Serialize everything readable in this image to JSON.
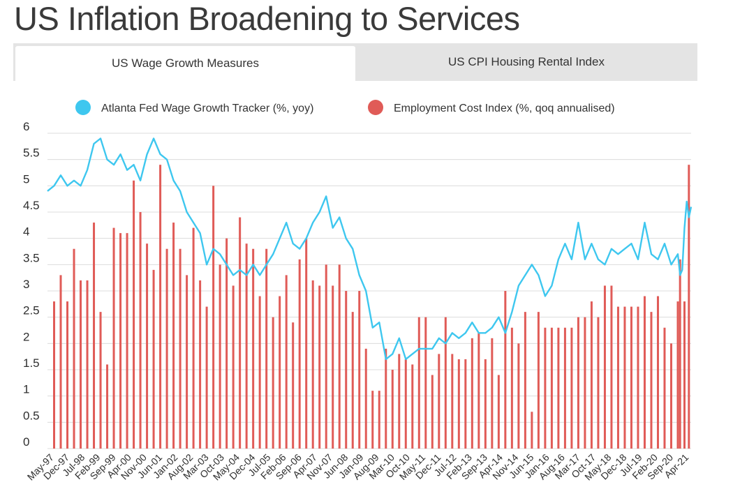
{
  "page": {
    "title": "US Inflation Broadening to Services"
  },
  "tabs": [
    {
      "label": "US Wage Growth Measures",
      "active": true
    },
    {
      "label": "US CPI Housing Rental Index",
      "active": false
    }
  ],
  "colors": {
    "wage_line": "#3ec7ef",
    "eci_bars": "#e05b57",
    "grid": "#dcdcdc"
  },
  "chart_data": {
    "type": "bar+line",
    "title": "",
    "xlabel": "",
    "ylabel": "",
    "ylim": [
      0,
      6
    ],
    "yticks": [
      "0",
      "0.5",
      "1",
      "1.5",
      "2",
      "2.5",
      "3",
      "3.5",
      "4",
      "4.5",
      "5",
      "5.5",
      "6"
    ],
    "x_start": "1997-03",
    "x_end": "2021-06",
    "x_tick_labels": [
      "May-97",
      "Dec-97",
      "Jul-98",
      "Feb-99",
      "Sep-99",
      "Apr-00",
      "Nov-00",
      "Jun-01",
      "Jan-02",
      "Aug-02",
      "Mar-03",
      "Oct-03",
      "May-04",
      "Dec-04",
      "Jul-05",
      "Feb-06",
      "Sep-06",
      "Apr-07",
      "Nov-07",
      "Jun-08",
      "Jan-09",
      "Aug-09",
      "Mar-10",
      "Oct-10",
      "May-11",
      "Dec-11",
      "Jul-12",
      "Feb-13",
      "Sep-13",
      "Apr-14",
      "Nov-14",
      "Jun-15",
      "Jan-16",
      "Aug-16",
      "Mar-17",
      "Oct-17",
      "May-18",
      "Dec-18",
      "Jul-19",
      "Feb-20",
      "Sep-20",
      "Apr-21"
    ],
    "series": [
      {
        "name": "Atlanta Fed Wage Growth Tracker (%, yoy)",
        "kind": "line",
        "points": [
          [
            "1997-03",
            4.9
          ],
          [
            "1997-06",
            5.0
          ],
          [
            "1997-09",
            5.2
          ],
          [
            "1997-12",
            5.0
          ],
          [
            "1998-03",
            5.1
          ],
          [
            "1998-06",
            5.0
          ],
          [
            "1998-09",
            5.3
          ],
          [
            "1998-12",
            5.8
          ],
          [
            "1999-03",
            5.9
          ],
          [
            "1999-06",
            5.5
          ],
          [
            "1999-09",
            5.4
          ],
          [
            "1999-12",
            5.6
          ],
          [
            "2000-03",
            5.3
          ],
          [
            "2000-06",
            5.4
          ],
          [
            "2000-09",
            5.1
          ],
          [
            "2000-12",
            5.6
          ],
          [
            "2001-03",
            5.9
          ],
          [
            "2001-06",
            5.6
          ],
          [
            "2001-09",
            5.5
          ],
          [
            "2001-12",
            5.1
          ],
          [
            "2002-03",
            4.9
          ],
          [
            "2002-06",
            4.5
          ],
          [
            "2002-09",
            4.3
          ],
          [
            "2002-12",
            4.1
          ],
          [
            "2003-03",
            3.5
          ],
          [
            "2003-06",
            3.8
          ],
          [
            "2003-09",
            3.7
          ],
          [
            "2003-12",
            3.5
          ],
          [
            "2004-03",
            3.3
          ],
          [
            "2004-06",
            3.4
          ],
          [
            "2004-09",
            3.3
          ],
          [
            "2004-12",
            3.5
          ],
          [
            "2005-03",
            3.3
          ],
          [
            "2005-06",
            3.5
          ],
          [
            "2005-09",
            3.7
          ],
          [
            "2005-12",
            4.0
          ],
          [
            "2006-03",
            4.3
          ],
          [
            "2006-06",
            3.9
          ],
          [
            "2006-09",
            3.8
          ],
          [
            "2006-12",
            4.0
          ],
          [
            "2007-03",
            4.3
          ],
          [
            "2007-06",
            4.5
          ],
          [
            "2007-09",
            4.8
          ],
          [
            "2007-12",
            4.2
          ],
          [
            "2008-03",
            4.4
          ],
          [
            "2008-06",
            4.0
          ],
          [
            "2008-09",
            3.8
          ],
          [
            "2008-12",
            3.3
          ],
          [
            "2009-03",
            3.0
          ],
          [
            "2009-06",
            2.3
          ],
          [
            "2009-09",
            2.4
          ],
          [
            "2009-12",
            1.7
          ],
          [
            "2010-03",
            1.8
          ],
          [
            "2010-06",
            2.1
          ],
          [
            "2010-09",
            1.7
          ],
          [
            "2010-12",
            1.8
          ],
          [
            "2011-03",
            1.9
          ],
          [
            "2011-06",
            1.9
          ],
          [
            "2011-09",
            1.9
          ],
          [
            "2011-12",
            2.1
          ],
          [
            "2012-03",
            2.0
          ],
          [
            "2012-06",
            2.2
          ],
          [
            "2012-09",
            2.1
          ],
          [
            "2012-12",
            2.2
          ],
          [
            "2013-03",
            2.4
          ],
          [
            "2013-06",
            2.2
          ],
          [
            "2013-09",
            2.2
          ],
          [
            "2013-12",
            2.3
          ],
          [
            "2014-03",
            2.5
          ],
          [
            "2014-06",
            2.2
          ],
          [
            "2014-09",
            2.6
          ],
          [
            "2014-12",
            3.1
          ],
          [
            "2015-03",
            3.3
          ],
          [
            "2015-06",
            3.5
          ],
          [
            "2015-09",
            3.3
          ],
          [
            "2015-12",
            2.9
          ],
          [
            "2016-03",
            3.1
          ],
          [
            "2016-06",
            3.6
          ],
          [
            "2016-09",
            3.9
          ],
          [
            "2016-12",
            3.6
          ],
          [
            "2017-03",
            4.3
          ],
          [
            "2017-06",
            3.6
          ],
          [
            "2017-09",
            3.9
          ],
          [
            "2017-12",
            3.6
          ],
          [
            "2018-03",
            3.5
          ],
          [
            "2018-06",
            3.8
          ],
          [
            "2018-09",
            3.7
          ],
          [
            "2018-12",
            3.8
          ],
          [
            "2019-03",
            3.9
          ],
          [
            "2019-06",
            3.6
          ],
          [
            "2019-09",
            4.3
          ],
          [
            "2019-12",
            3.7
          ],
          [
            "2020-03",
            3.6
          ],
          [
            "2020-06",
            3.9
          ],
          [
            "2020-09",
            3.5
          ],
          [
            "2020-12",
            3.7
          ],
          [
            "2021-01",
            3.3
          ],
          [
            "2021-02",
            3.4
          ],
          [
            "2021-03",
            4.2
          ],
          [
            "2021-04",
            4.7
          ],
          [
            "2021-05",
            4.4
          ],
          [
            "2021-06",
            4.6
          ]
        ]
      },
      {
        "name": "Employment Cost Index (%, qoq annualised)",
        "kind": "bar",
        "points": [
          [
            "1997-06",
            2.8
          ],
          [
            "1997-09",
            3.3
          ],
          [
            "1997-12",
            2.8
          ],
          [
            "1998-03",
            3.8
          ],
          [
            "1998-06",
            3.2
          ],
          [
            "1998-09",
            3.2
          ],
          [
            "1998-12",
            4.3
          ],
          [
            "1999-03",
            2.6
          ],
          [
            "1999-06",
            1.6
          ],
          [
            "1999-09",
            4.2
          ],
          [
            "1999-12",
            4.1
          ],
          [
            "2000-03",
            4.1
          ],
          [
            "2000-06",
            5.1
          ],
          [
            "2000-09",
            4.5
          ],
          [
            "2000-12",
            3.9
          ],
          [
            "2001-03",
            3.4
          ],
          [
            "2001-06",
            5.4
          ],
          [
            "2001-09",
            3.8
          ],
          [
            "2001-12",
            4.3
          ],
          [
            "2002-03",
            3.8
          ],
          [
            "2002-06",
            3.3
          ],
          [
            "2002-09",
            4.2
          ],
          [
            "2002-12",
            3.2
          ],
          [
            "2003-03",
            2.7
          ],
          [
            "2003-06",
            5.0
          ],
          [
            "2003-09",
            3.5
          ],
          [
            "2003-12",
            4.0
          ],
          [
            "2004-03",
            3.1
          ],
          [
            "2004-06",
            4.4
          ],
          [
            "2004-09",
            3.9
          ],
          [
            "2004-12",
            3.8
          ],
          [
            "2005-03",
            2.9
          ],
          [
            "2005-06",
            3.8
          ],
          [
            "2005-09",
            2.5
          ],
          [
            "2005-12",
            2.9
          ],
          [
            "2006-03",
            3.3
          ],
          [
            "2006-06",
            2.4
          ],
          [
            "2006-09",
            3.6
          ],
          [
            "2006-12",
            4.0
          ],
          [
            "2007-03",
            3.2
          ],
          [
            "2007-06",
            3.1
          ],
          [
            "2007-09",
            3.5
          ],
          [
            "2007-12",
            3.1
          ],
          [
            "2008-03",
            3.5
          ],
          [
            "2008-06",
            3.0
          ],
          [
            "2008-09",
            2.6
          ],
          [
            "2008-12",
            3.0
          ],
          [
            "2009-03",
            1.9
          ],
          [
            "2009-06",
            1.1
          ],
          [
            "2009-09",
            1.1
          ],
          [
            "2009-12",
            1.9
          ],
          [
            "2010-03",
            1.5
          ],
          [
            "2010-06",
            1.8
          ],
          [
            "2010-09",
            1.7
          ],
          [
            "2010-12",
            1.6
          ],
          [
            "2011-03",
            2.5
          ],
          [
            "2011-06",
            2.5
          ],
          [
            "2011-09",
            1.4
          ],
          [
            "2011-12",
            1.8
          ],
          [
            "2012-03",
            2.5
          ],
          [
            "2012-06",
            1.8
          ],
          [
            "2012-09",
            1.7
          ],
          [
            "2012-12",
            1.7
          ],
          [
            "2013-03",
            2.1
          ],
          [
            "2013-06",
            2.2
          ],
          [
            "2013-09",
            1.7
          ],
          [
            "2013-12",
            2.1
          ],
          [
            "2014-03",
            1.4
          ],
          [
            "2014-06",
            3.0
          ],
          [
            "2014-09",
            2.3
          ],
          [
            "2014-12",
            2.0
          ],
          [
            "2015-03",
            2.6
          ],
          [
            "2015-06",
            0.7
          ],
          [
            "2015-09",
            2.6
          ],
          [
            "2015-12",
            2.3
          ],
          [
            "2016-03",
            2.3
          ],
          [
            "2016-06",
            2.3
          ],
          [
            "2016-09",
            2.3
          ],
          [
            "2016-12",
            2.3
          ],
          [
            "2017-03",
            2.5
          ],
          [
            "2017-06",
            2.5
          ],
          [
            "2017-09",
            2.8
          ],
          [
            "2017-12",
            2.5
          ],
          [
            "2018-03",
            3.1
          ],
          [
            "2018-06",
            3.1
          ],
          [
            "2018-09",
            2.7
          ],
          [
            "2018-12",
            2.7
          ],
          [
            "2019-03",
            2.7
          ],
          [
            "2019-06",
            2.7
          ],
          [
            "2019-09",
            2.9
          ],
          [
            "2019-12",
            2.6
          ],
          [
            "2020-03",
            2.9
          ],
          [
            "2020-06",
            2.3
          ],
          [
            "2020-09",
            2.0
          ],
          [
            "2020-12",
            2.8
          ],
          [
            "2021-01",
            3.6
          ],
          [
            "2021-03",
            2.8
          ],
          [
            "2021-05",
            5.4
          ]
        ]
      }
    ],
    "legend_position": "top-center"
  }
}
